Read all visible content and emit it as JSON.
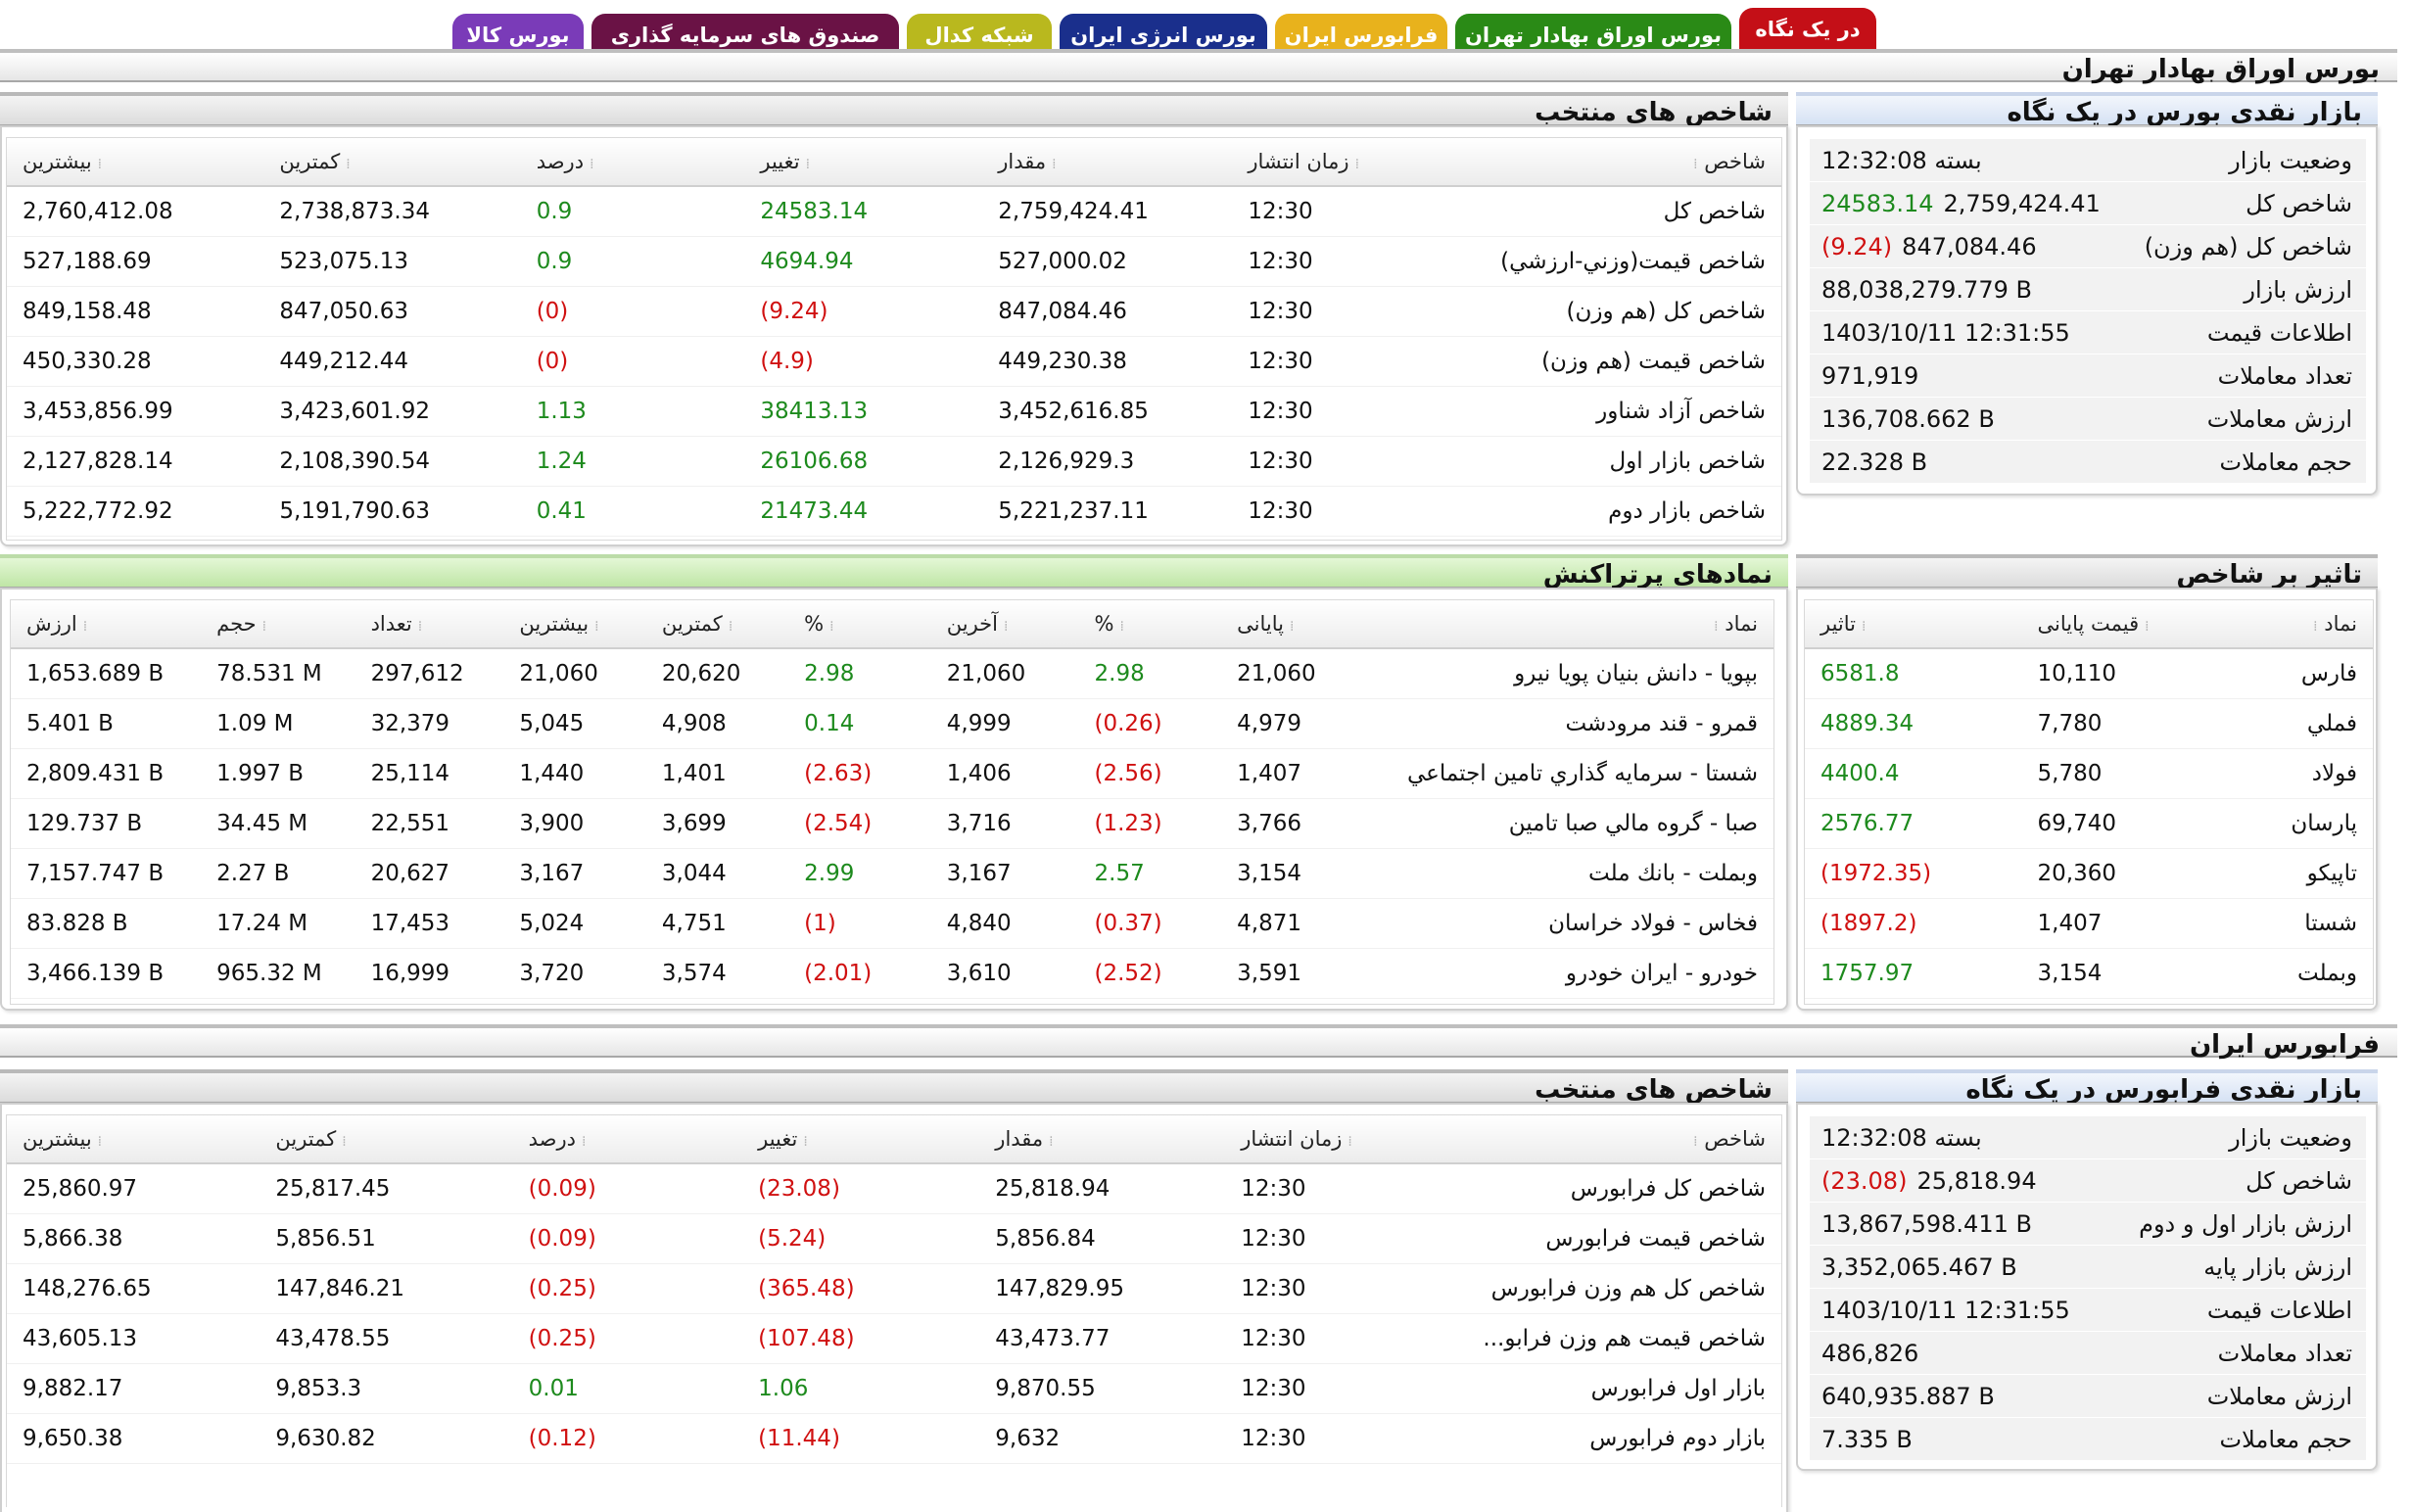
{
  "tabs": [
    {
      "label": "در یک نگاه",
      "bg": "#c40f17",
      "fg": "#ffffff"
    },
    {
      "label": "بورس اوراق بهادار تهران",
      "bg": "#2a8a16",
      "fg": "#ffffff"
    },
    {
      "label": "فرابورس ایران",
      "bg": "#e8b21c",
      "fg": "#ffffff"
    },
    {
      "label": "بورس انرژی ایران",
      "bg": "#1a2f8c",
      "fg": "#ffffff"
    },
    {
      "label": "شبکه کدال",
      "bg": "#b9b81e",
      "fg": "#ffffff"
    },
    {
      "label": "صندوق های سرمایه گذاری",
      "bg": "#6a1245",
      "fg": "#ffffff"
    },
    {
      "label": "بورس کالا",
      "bg": "#7a3bb8",
      "fg": "#ffffff"
    }
  ],
  "tse": {
    "title": "بورس اوراق بهادار تهران",
    "summary": {
      "title": "بازار نقدی بورس در یک نگاه",
      "rows": [
        {
          "key": "وضعیت بازار",
          "value": "بسته 12:32:08"
        },
        {
          "key": "شاخص کل",
          "value": "2,759,424.41",
          "change": "24583.14",
          "tone": "pos"
        },
        {
          "key": "شاخص کل (هم وزن)",
          "value": "847,084.46",
          "change": "(9.24)",
          "tone": "neg"
        },
        {
          "key": "ارزش بازار",
          "value": "88,038,279.779 B"
        },
        {
          "key": "اطلاعات قیمت",
          "value": "1403/10/11 12:31:55"
        },
        {
          "key": "تعداد معاملات",
          "value": "971,919"
        },
        {
          "key": "ارزش معاملات",
          "value": "136,708.662 B"
        },
        {
          "key": "حجم معاملات",
          "value": "22.328 B"
        }
      ]
    },
    "indices": {
      "title": "شاخص های منتخب",
      "headers": [
        "شاخص",
        "زمان انتشار",
        "مقدار",
        "تغییر",
        "درصد",
        "کمترین",
        "بیشترین"
      ],
      "rows": [
        {
          "name": "شاخص کل",
          "time": "12:30",
          "value": "2,759,424.41",
          "change": "24583.14",
          "percent": "0.9",
          "low": "2,738,873.34",
          "high": "2,760,412.08",
          "tone": "pos"
        },
        {
          "name": "شاخص قيمت(وزني-ارزشي)",
          "time": "12:30",
          "value": "527,000.02",
          "change": "4694.94",
          "percent": "0.9",
          "low": "523,075.13",
          "high": "527,188.69",
          "tone": "pos"
        },
        {
          "name": "شاخص کل (هم وزن)",
          "time": "12:30",
          "value": "847,084.46",
          "change": "(9.24)",
          "percent": "(0)",
          "low": "847,050.63",
          "high": "849,158.48",
          "tone": "neg"
        },
        {
          "name": "شاخص قیمت (هم وزن)",
          "time": "12:30",
          "value": "449,230.38",
          "change": "(4.9)",
          "percent": "(0)",
          "low": "449,212.44",
          "high": "450,330.28",
          "tone": "neg"
        },
        {
          "name": "شاخص آزاد شناور",
          "time": "12:30",
          "value": "3,452,616.85",
          "change": "38413.13",
          "percent": "1.13",
          "low": "3,423,601.92",
          "high": "3,453,856.99",
          "tone": "pos"
        },
        {
          "name": "شاخص بازار اول",
          "time": "12:30",
          "value": "2,126,929.3",
          "change": "26106.68",
          "percent": "1.24",
          "low": "2,108,390.54",
          "high": "2,127,828.14",
          "tone": "pos"
        },
        {
          "name": "شاخص بازار دوم",
          "time": "12:30",
          "value": "5,221,237.11",
          "change": "21473.44",
          "percent": "0.41",
          "low": "5,191,790.63",
          "high": "5,222,772.92",
          "tone": "pos"
        }
      ]
    },
    "impact": {
      "title": "تاثیر بر شاخص",
      "headers": [
        "نماد",
        "قیمت پایانی",
        "تاثیر"
      ],
      "rows": [
        {
          "symbol": "فارس",
          "close": "10,110",
          "impact": "6581.8",
          "tone": "pos"
        },
        {
          "symbol": "فملي",
          "close": "7,780",
          "impact": "4889.34",
          "tone": "pos"
        },
        {
          "symbol": "فولاد",
          "close": "5,780",
          "impact": "4400.4",
          "tone": "pos"
        },
        {
          "symbol": "پارسان",
          "close": "69,740",
          "impact": "2576.77",
          "tone": "pos"
        },
        {
          "symbol": "تاپيکو",
          "close": "20,360",
          "impact": "(1972.35)",
          "tone": "neg"
        },
        {
          "symbol": "شستا",
          "close": "1,407",
          "impact": "(1897.2)",
          "tone": "neg"
        },
        {
          "symbol": "وبملت",
          "close": "3,154",
          "impact": "1757.97",
          "tone": "pos"
        }
      ]
    },
    "active": {
      "title": "نمادهای پرتراکنش",
      "headers": [
        "نماد",
        "پایانی",
        "%",
        "آخرین",
        "%",
        "کمترین",
        "بیشترین",
        "تعداد",
        "حجم",
        "ارزش"
      ],
      "rows": [
        {
          "symbol": "بپویا - دانش بنیان پویا نیرو",
          "close": "21,060",
          "close_pct": "2.98",
          "last": "21,060",
          "last_pct": "2.98",
          "low": "20,620",
          "high": "21,060",
          "count": "297,612",
          "volume": "78.531 M",
          "value": "1,653.689 B",
          "tone1": "pos",
          "tone2": "pos"
        },
        {
          "symbol": "قمرو - قند مرودشت",
          "close": "4,979",
          "close_pct": "(0.26)",
          "last": "4,999",
          "last_pct": "0.14",
          "low": "4,908",
          "high": "5,045",
          "count": "32,379",
          "volume": "1.09 M",
          "value": "5.401 B",
          "tone1": "neg",
          "tone2": "pos"
        },
        {
          "symbol": "شستا - سرمايه گذاري تامين اجتماعي",
          "close": "1,407",
          "close_pct": "(2.56)",
          "last": "1,406",
          "last_pct": "(2.63)",
          "low": "1,401",
          "high": "1,440",
          "count": "25,114",
          "volume": "1.997 B",
          "value": "2,809.431 B",
          "tone1": "neg",
          "tone2": "neg"
        },
        {
          "symbol": "صبا - گروه مالي صبا تامين",
          "close": "3,766",
          "close_pct": "(1.23)",
          "last": "3,716",
          "last_pct": "(2.54)",
          "low": "3,699",
          "high": "3,900",
          "count": "22,551",
          "volume": "34.45 M",
          "value": "129.737 B",
          "tone1": "neg",
          "tone2": "neg"
        },
        {
          "symbol": "وبملت - بانك ملت",
          "close": "3,154",
          "close_pct": "2.57",
          "last": "3,167",
          "last_pct": "2.99",
          "low": "3,044",
          "high": "3,167",
          "count": "20,627",
          "volume": "2.27 B",
          "value": "7,157.747 B",
          "tone1": "pos",
          "tone2": "pos"
        },
        {
          "symbol": "فخاس - فولاد خراسان",
          "close": "4,871",
          "close_pct": "(0.37)",
          "last": "4,840",
          "last_pct": "(1)",
          "low": "4,751",
          "high": "5,024",
          "count": "17,453",
          "volume": "17.24 M",
          "value": "83.828 B",
          "tone1": "neg",
          "tone2": "neg"
        },
        {
          "symbol": "خودرو - ايران خودرو",
          "close": "3,591",
          "close_pct": "(2.52)",
          "last": "3,610",
          "last_pct": "(2.01)",
          "low": "3,574",
          "high": "3,720",
          "count": "16,999",
          "volume": "965.32 M",
          "value": "3,466.139 B",
          "tone1": "neg",
          "tone2": "neg"
        }
      ]
    }
  },
  "ifb": {
    "title": "فرابورس ایران",
    "summary": {
      "title": "بازار نقدی فرابورس در یک نگاه",
      "rows": [
        {
          "key": "وضعیت بازار",
          "value": "بسته 12:32:08"
        },
        {
          "key": "شاخص کل",
          "value": "25,818.94",
          "change": "(23.08)",
          "tone": "neg"
        },
        {
          "key": "ارزش بازار اول و دوم",
          "value": "13,867,598.411 B"
        },
        {
          "key": "ارزش بازار پایه",
          "value": "3,352,065.467 B"
        },
        {
          "key": "اطلاعات قیمت",
          "value": "1403/10/11 12:31:55"
        },
        {
          "key": "تعداد معاملات",
          "value": "486,826"
        },
        {
          "key": "ارزش معاملات",
          "value": "640,935.887 B"
        },
        {
          "key": "حجم معاملات",
          "value": "7.335 B"
        }
      ]
    },
    "indices": {
      "title": "شاخص های منتخب",
      "headers": [
        "شاخص",
        "زمان انتشار",
        "مقدار",
        "تغییر",
        "درصد",
        "کمترین",
        "بیشترین"
      ],
      "rows": [
        {
          "name": "شاخص کل فرابورس",
          "time": "12:30",
          "value": "25,818.94",
          "change": "(23.08)",
          "percent": "(0.09)",
          "low": "25,817.45",
          "high": "25,860.97",
          "tone": "neg"
        },
        {
          "name": "شاخص قیمت فرابورس",
          "time": "12:30",
          "value": "5,856.84",
          "change": "(5.24)",
          "percent": "(0.09)",
          "low": "5,856.51",
          "high": "5,866.38",
          "tone": "neg"
        },
        {
          "name": "شاخص کل هم وزن فرابورس",
          "time": "12:30",
          "value": "147,829.95",
          "change": "(365.48)",
          "percent": "(0.25)",
          "low": "147,846.21",
          "high": "148,276.65",
          "tone": "neg"
        },
        {
          "name": "شاخص قیمت هم وزن فرابو...",
          "time": "12:30",
          "value": "43,473.77",
          "change": "(107.48)",
          "percent": "(0.25)",
          "low": "43,478.55",
          "high": "43,605.13",
          "tone": "neg"
        },
        {
          "name": "بازار اول فرابورس",
          "time": "12:30",
          "value": "9,870.55",
          "change": "1.06",
          "percent": "0.01",
          "low": "9,853.3",
          "high": "9,882.17",
          "tone": "pos"
        },
        {
          "name": "بازار دوم فرابورس",
          "time": "12:30",
          "value": "9,632",
          "change": "(11.44)",
          "percent": "(0.12)",
          "low": "9,630.82",
          "high": "9,650.38",
          "tone": "neg"
        }
      ]
    }
  }
}
